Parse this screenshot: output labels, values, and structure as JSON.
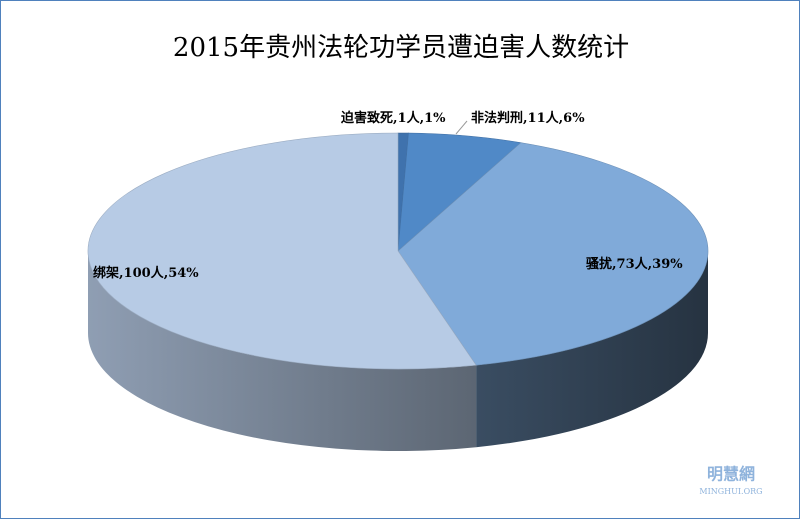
{
  "chart_data": {
    "type": "pie3d",
    "title": "2015年贵州法轮功学员遭迫害人数统计",
    "categories": [
      "迫害致死",
      "非法判刑",
      "骚扰",
      "绑架"
    ],
    "values": [
      1,
      11,
      73,
      100
    ],
    "value_labels": [
      "1人",
      "11人",
      "73人",
      "100人"
    ],
    "percent_labels": [
      "1%",
      "6%",
      "39%",
      "54%"
    ],
    "label_separator": ",",
    "colors": [
      "#3f72ad",
      "#5089c7",
      "#80aad9",
      "#b7cbe5"
    ],
    "watermark": "明慧網",
    "watermark_sub": "MINGHUI.ORG"
  }
}
